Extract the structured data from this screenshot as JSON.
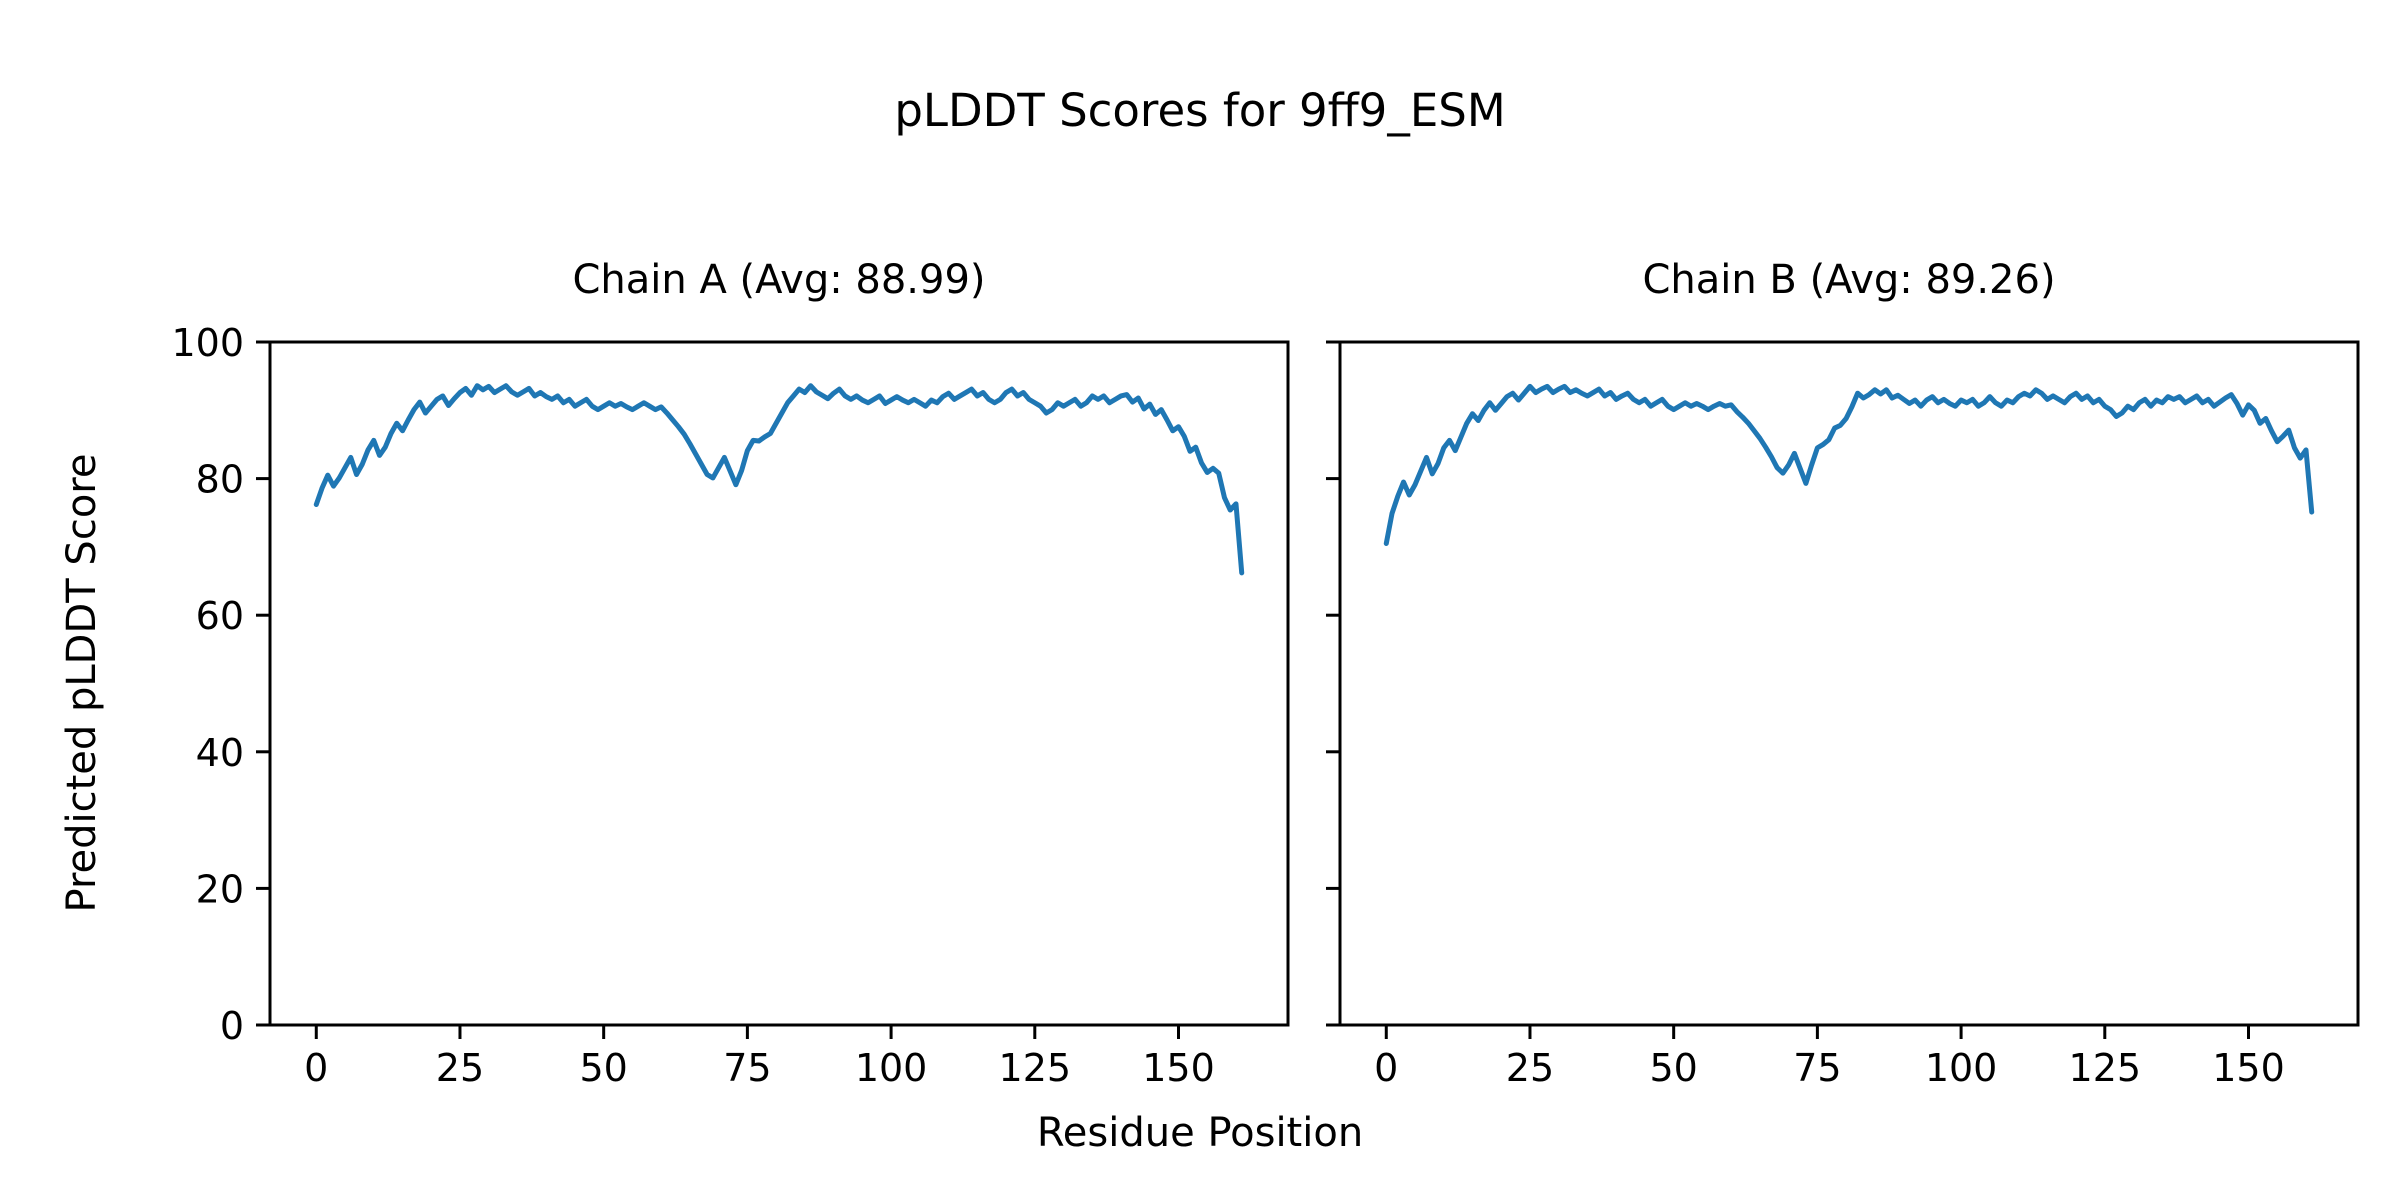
{
  "figure": {
    "title": "pLDDT Scores for 9ff9_ESM",
    "xlabel": "Residue Position",
    "ylabel": "Predicted pLDDT Score",
    "background_color": "#ffffff",
    "text_color": "#000000",
    "spine_color": "#000000"
  },
  "chart_data": [
    {
      "type": "line",
      "title": "Chain A (Avg: 88.99)",
      "series_name": "Chain A pLDDT",
      "avg_plddt": 88.99,
      "line_color": "#1f77b4",
      "grid": false,
      "legend_position": "none",
      "xlim": [
        -8.05,
        169.05
      ],
      "ylim": [
        0,
        100
      ],
      "xticks": [
        0,
        25,
        50,
        75,
        100,
        125,
        150
      ],
      "yticks": [
        0,
        20,
        40,
        60,
        80,
        100
      ],
      "show_ytick_labels": true,
      "x_start": 0,
      "values": [
        76.2,
        78.6,
        80.5,
        78.9,
        80.1,
        81.6,
        83.1,
        80.6,
        82.1,
        84.2,
        85.6,
        83.4,
        84.6,
        86.6,
        88.1,
        87.0,
        88.6,
        90.1,
        91.2,
        89.6,
        90.6,
        91.6,
        92.1,
        90.7,
        91.7,
        92.6,
        93.2,
        92.2,
        93.6,
        93.0,
        93.5,
        92.6,
        93.1,
        93.6,
        92.7,
        92.2,
        92.7,
        93.2,
        92.1,
        92.6,
        92.0,
        91.6,
        92.1,
        91.1,
        91.6,
        90.6,
        91.1,
        91.6,
        90.6,
        90.1,
        90.6,
        91.1,
        90.6,
        91.0,
        90.5,
        90.1,
        90.6,
        91.1,
        90.6,
        90.1,
        90.5,
        89.6,
        88.6,
        87.6,
        86.5,
        85.1,
        83.6,
        82.1,
        80.6,
        80.1,
        81.6,
        83.1,
        81.1,
        79.1,
        81.2,
        84.1,
        85.6,
        85.5,
        86.1,
        86.6,
        88.1,
        89.6,
        91.1,
        92.1,
        93.1,
        92.6,
        93.6,
        92.7,
        92.2,
        91.7,
        92.5,
        93.1,
        92.1,
        91.6,
        92.1,
        91.5,
        91.1,
        91.6,
        92.1,
        91.0,
        91.5,
        92.0,
        91.5,
        91.1,
        91.6,
        91.1,
        90.6,
        91.5,
        91.1,
        92.0,
        92.5,
        91.6,
        92.1,
        92.6,
        93.1,
        92.1,
        92.6,
        91.6,
        91.1,
        91.6,
        92.6,
        93.1,
        92.1,
        92.6,
        91.6,
        91.1,
        90.6,
        89.6,
        90.1,
        91.1,
        90.6,
        91.1,
        91.6,
        90.6,
        91.1,
        92.1,
        91.6,
        92.1,
        91.1,
        91.6,
        92.1,
        92.3,
        91.2,
        91.8,
        90.2,
        90.9,
        89.4,
        90.1,
        88.6,
        87.0,
        87.6,
        86.2,
        84.0,
        84.6,
        82.3,
        80.9,
        81.5,
        80.8,
        77.2,
        75.4,
        76.3,
        66.2
      ]
    },
    {
      "type": "line",
      "title": "Chain B (Avg: 89.26)",
      "series_name": "Chain B pLDDT",
      "avg_plddt": 89.26,
      "line_color": "#1f77b4",
      "grid": false,
      "legend_position": "none",
      "xlim": [
        -8.05,
        169.05
      ],
      "ylim": [
        0,
        100
      ],
      "xticks": [
        0,
        25,
        50,
        75,
        100,
        125,
        150
      ],
      "yticks": [
        0,
        20,
        40,
        60,
        80,
        100
      ],
      "show_ytick_labels": false,
      "x_start": 0,
      "values": [
        70.5,
        74.9,
        77.4,
        79.5,
        77.6,
        79.1,
        81.1,
        83.1,
        80.7,
        82.2,
        84.5,
        85.6,
        84.1,
        86.1,
        88.1,
        89.5,
        88.5,
        90.0,
        91.1,
        90.0,
        91.0,
        92.0,
        92.5,
        91.5,
        92.5,
        93.5,
        92.6,
        93.1,
        93.5,
        92.6,
        93.1,
        93.5,
        92.6,
        93.0,
        92.5,
        92.1,
        92.6,
        93.1,
        92.1,
        92.6,
        91.6,
        92.1,
        92.5,
        91.6,
        91.1,
        91.6,
        90.6,
        91.1,
        91.6,
        90.6,
        90.1,
        90.6,
        91.1,
        90.6,
        91.0,
        90.6,
        90.1,
        90.6,
        91.0,
        90.6,
        90.8,
        89.8,
        89.0,
        88.1,
        87.0,
        85.9,
        84.6,
        83.2,
        81.6,
        80.8,
        82.0,
        83.7,
        81.5,
        79.3,
        82.0,
        84.5,
        85.0,
        85.7,
        87.4,
        87.8,
        88.8,
        90.5,
        92.5,
        91.8,
        92.3,
        93.0,
        92.4,
        93.0,
        91.8,
        92.2,
        91.6,
        91.0,
        91.5,
        90.6,
        91.5,
        92.0,
        91.1,
        91.6,
        91.0,
        90.6,
        91.5,
        91.1,
        91.6,
        90.6,
        91.1,
        92.0,
        91.1,
        90.6,
        91.5,
        91.1,
        92.0,
        92.5,
        92.1,
        93.0,
        92.5,
        91.6,
        92.1,
        91.6,
        91.1,
        92.0,
        92.5,
        91.6,
        92.1,
        91.1,
        91.6,
        90.6,
        90.1,
        89.1,
        89.6,
        90.6,
        90.1,
        91.1,
        91.6,
        90.6,
        91.5,
        91.1,
        92.0,
        91.6,
        92.0,
        91.1,
        91.6,
        92.1,
        91.1,
        91.6,
        90.6,
        91.2,
        91.8,
        92.3,
        91.0,
        89.3,
        90.8,
        90.0,
        88.1,
        88.8,
        87.0,
        85.4,
        86.2,
        87.1,
        84.5,
        83.0,
        84.2,
        75.1
      ]
    }
  ]
}
